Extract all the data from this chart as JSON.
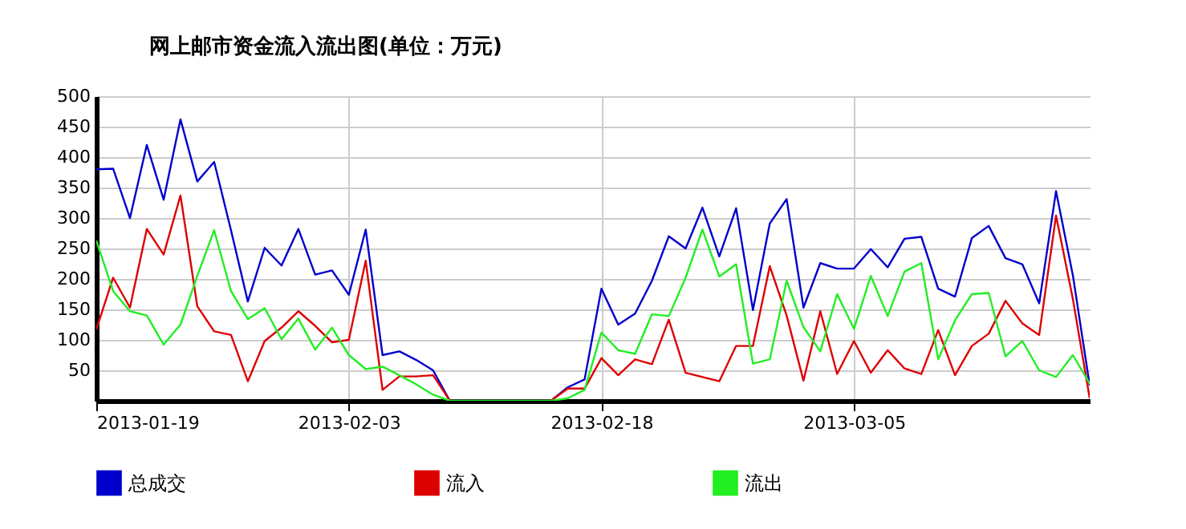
{
  "chart_data": {
    "type": "line",
    "title": "网上邮市资金流入流出图(单位：万元)",
    "x": [
      "2013-01-19",
      "2013-01-20",
      "2013-01-21",
      "2013-01-22",
      "2013-01-23",
      "2013-01-24",
      "2013-01-25",
      "2013-01-26",
      "2013-01-27",
      "2013-01-28",
      "2013-01-29",
      "2013-01-30",
      "2013-01-31",
      "2013-02-01",
      "2013-02-02",
      "2013-02-03",
      "2013-02-04",
      "2013-02-05",
      "2013-02-06",
      "2013-02-07",
      "2013-02-08",
      "2013-02-09",
      "2013-02-10",
      "2013-02-11",
      "2013-02-12",
      "2013-02-13",
      "2013-02-14",
      "2013-02-15",
      "2013-02-16",
      "2013-02-17",
      "2013-02-18",
      "2013-02-19",
      "2013-02-20",
      "2013-02-21",
      "2013-02-22",
      "2013-02-23",
      "2013-02-24",
      "2013-02-25",
      "2013-02-26",
      "2013-02-27",
      "2013-02-28",
      "2013-03-01",
      "2013-03-02",
      "2013-03-03",
      "2013-03-04",
      "2013-03-05",
      "2013-03-06",
      "2013-03-07",
      "2013-03-08",
      "2013-03-09",
      "2013-03-10",
      "2013-03-11",
      "2013-03-12",
      "2013-03-13",
      "2013-03-14",
      "2013-03-15",
      "2013-03-16",
      "2013-03-17",
      "2013-03-18",
      "2013-03-19"
    ],
    "series": [
      {
        "name": "总成交",
        "color": "#0000cc",
        "values": [
          380,
          381,
          300,
          420,
          330,
          462,
          360,
          392,
          280,
          163,
          251,
          222,
          282,
          207,
          214,
          174,
          281,
          75,
          81,
          67,
          50,
          0,
          0,
          0,
          0,
          0,
          0,
          0,
          22,
          35,
          184,
          125,
          143,
          197,
          270,
          250,
          317,
          237,
          316,
          149,
          291,
          331,
          153,
          226,
          217,
          217,
          249,
          219,
          266,
          269,
          184,
          171,
          267,
          287,
          234,
          224,
          160,
          344,
          206,
          25
        ]
      },
      {
        "name": "流入",
        "color": "#dd0000",
        "values": [
          117,
          202,
          153,
          282,
          240,
          337,
          155,
          114,
          108,
          32,
          98,
          120,
          147,
          123,
          96,
          100,
          230,
          18,
          40,
          40,
          42,
          0,
          0,
          0,
          0,
          0,
          0,
          0,
          20,
          20,
          70,
          42,
          68,
          60,
          133,
          46,
          39,
          32,
          90,
          90,
          221,
          140,
          33,
          147,
          44,
          98,
          46,
          83,
          53,
          44,
          116,
          42,
          90,
          110,
          164,
          127,
          108,
          304,
          167,
          4
        ]
      },
      {
        "name": "流出",
        "color": "#22ee22",
        "values": [
          263,
          180,
          147,
          140,
          92,
          125,
          205,
          280,
          180,
          134,
          152,
          101,
          135,
          84,
          120,
          75,
          52,
          56,
          42,
          27,
          10,
          0,
          0,
          0,
          0,
          0,
          0,
          0,
          4,
          18,
          112,
          83,
          77,
          142,
          139,
          202,
          281,
          204,
          224,
          61,
          68,
          197,
          121,
          81,
          175,
          118,
          205,
          139,
          212,
          226,
          68,
          132,
          175,
          177,
          73,
          98,
          50,
          39,
          75,
          28
        ]
      }
    ],
    "xlim": [
      "2013-01-19",
      "2013-03-19"
    ],
    "xticks": [
      {
        "value": "2013-01-19",
        "label": "2013-01-19"
      },
      {
        "value": "2013-02-03",
        "label": "2013-02-03"
      },
      {
        "value": "2013-02-18",
        "label": "2013-02-18"
      },
      {
        "value": "2013-03-05",
        "label": "2013-03-05"
      }
    ],
    "ylim": [
      0,
      500
    ],
    "yticks": [
      50,
      100,
      150,
      200,
      250,
      300,
      350,
      400,
      450,
      500
    ],
    "grid": true,
    "legend": "bottom",
    "marker": "none",
    "line_style": "solid"
  }
}
